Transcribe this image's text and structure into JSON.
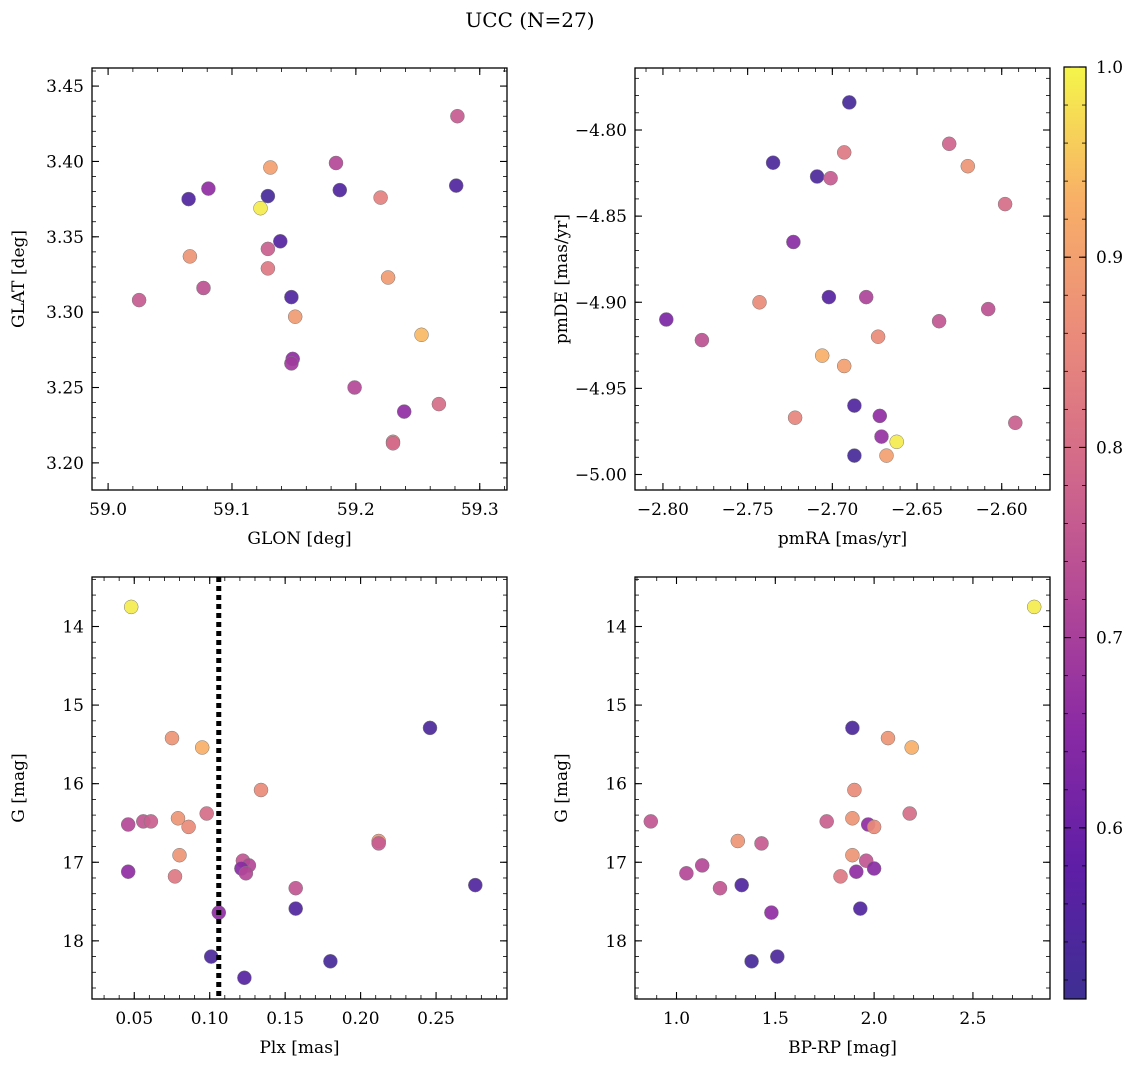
{
  "chart_data": {
    "title": "UCC (N=27)",
    "colormap": "plasma",
    "colorbar": {
      "range": [
        0.51,
        1.0
      ],
      "ticks": [
        "0.6",
        "0.7",
        "0.8",
        "0.9",
        "1.0"
      ],
      "tick_values": [
        0.6,
        0.7,
        0.8,
        0.9,
        1.0
      ]
    },
    "panels": [
      {
        "type": "scatter",
        "xlabel": "GLON [deg]",
        "ylabel": "GLAT [deg]",
        "xlim": [
          58.987,
          59.322
        ],
        "ylim": [
          3.182,
          3.462
        ],
        "x_ticks": [
          59.0,
          59.1,
          59.2,
          59.3
        ],
        "x_tick_labels": [
          "59.0",
          "59.1",
          "59.2",
          "59.3"
        ],
        "y_ticks": [
          3.2,
          3.25,
          3.3,
          3.35,
          3.4,
          3.45
        ],
        "y_tick_labels": [
          "3.20",
          "3.25",
          "3.30",
          "3.35",
          "3.40",
          "3.45"
        ],
        "y_inverted": false,
        "points": [
          {
            "x": 59.282,
            "y": 3.43,
            "c": 0.76
          },
          {
            "x": 59.131,
            "y": 3.396,
            "c": 0.9
          },
          {
            "x": 59.184,
            "y": 3.399,
            "c": 0.72
          },
          {
            "x": 59.081,
            "y": 3.382,
            "c": 0.66
          },
          {
            "x": 59.187,
            "y": 3.381,
            "c": 0.55
          },
          {
            "x": 59.281,
            "y": 3.384,
            "c": 0.55
          },
          {
            "x": 59.129,
            "y": 3.377,
            "c": 0.53
          },
          {
            "x": 59.22,
            "y": 3.376,
            "c": 0.84
          },
          {
            "x": 59.065,
            "y": 3.375,
            "c": 0.55
          },
          {
            "x": 59.123,
            "y": 3.369,
            "c": 0.99
          },
          {
            "x": 59.139,
            "y": 3.347,
            "c": 0.56
          },
          {
            "x": 59.129,
            "y": 3.342,
            "c": 0.77
          },
          {
            "x": 59.066,
            "y": 3.337,
            "c": 0.88
          },
          {
            "x": 59.129,
            "y": 3.329,
            "c": 0.82
          },
          {
            "x": 59.226,
            "y": 3.323,
            "c": 0.89
          },
          {
            "x": 59.077,
            "y": 3.316,
            "c": 0.74
          },
          {
            "x": 59.148,
            "y": 3.31,
            "c": 0.55
          },
          {
            "x": 59.025,
            "y": 3.308,
            "c": 0.76
          },
          {
            "x": 59.151,
            "y": 3.297,
            "c": 0.89
          },
          {
            "x": 59.253,
            "y": 3.285,
            "c": 0.94
          },
          {
            "x": 59.149,
            "y": 3.269,
            "c": 0.66
          },
          {
            "x": 59.148,
            "y": 3.266,
            "c": 0.69
          },
          {
            "x": 59.199,
            "y": 3.25,
            "c": 0.72
          },
          {
            "x": 59.267,
            "y": 3.239,
            "c": 0.8
          },
          {
            "x": 59.239,
            "y": 3.234,
            "c": 0.66
          },
          {
            "x": 59.23,
            "y": 3.214,
            "c": 0.83
          },
          {
            "x": 59.23,
            "y": 3.213,
            "c": 0.79
          }
        ]
      },
      {
        "type": "scatter",
        "xlabel": "pmRA [mas/yr]",
        "ylabel": "pmDE [mas/yr]",
        "xlim": [
          -2.8165,
          -2.5715
        ],
        "ylim": [
          -5.009,
          -4.764
        ],
        "x_ticks": [
          -2.8,
          -2.75,
          -2.7,
          -2.65,
          -2.6
        ],
        "x_tick_labels": [
          "−2.80",
          "−2.75",
          "−2.70",
          "−2.65",
          "−2.60"
        ],
        "y_ticks": [
          -5.0,
          -4.95,
          -4.9,
          -4.85,
          -4.8
        ],
        "y_tick_labels": [
          "−5.00",
          "−4.95",
          "−4.90",
          "−4.85",
          "−4.80"
        ],
        "y_inverted": false,
        "points": [
          {
            "x": -2.69,
            "y": -4.784,
            "c": 0.53
          },
          {
            "x": -2.631,
            "y": -4.808,
            "c": 0.78
          },
          {
            "x": -2.693,
            "y": -4.813,
            "c": 0.82
          },
          {
            "x": -2.62,
            "y": -4.821,
            "c": 0.88
          },
          {
            "x": -2.735,
            "y": -4.819,
            "c": 0.54
          },
          {
            "x": -2.709,
            "y": -4.827,
            "c": 0.54
          },
          {
            "x": -2.701,
            "y": -4.828,
            "c": 0.76
          },
          {
            "x": -2.598,
            "y": -4.843,
            "c": 0.8
          },
          {
            "x": -2.723,
            "y": -4.865,
            "c": 0.65
          },
          {
            "x": -2.743,
            "y": -4.9,
            "c": 0.86
          },
          {
            "x": -2.702,
            "y": -4.897,
            "c": 0.56
          },
          {
            "x": -2.68,
            "y": -4.897,
            "c": 0.71
          },
          {
            "x": -2.608,
            "y": -4.904,
            "c": 0.74
          },
          {
            "x": -2.637,
            "y": -4.911,
            "c": 0.75
          },
          {
            "x": -2.798,
            "y": -4.91,
            "c": 0.63
          },
          {
            "x": -2.777,
            "y": -4.922,
            "c": 0.74
          },
          {
            "x": -2.673,
            "y": -4.92,
            "c": 0.86
          },
          {
            "x": -2.706,
            "y": -4.931,
            "c": 0.93
          },
          {
            "x": -2.693,
            "y": -4.937,
            "c": 0.9
          },
          {
            "x": -2.687,
            "y": -4.96,
            "c": 0.55
          },
          {
            "x": -2.722,
            "y": -4.967,
            "c": 0.85
          },
          {
            "x": -2.672,
            "y": -4.966,
            "c": 0.66
          },
          {
            "x": -2.592,
            "y": -4.97,
            "c": 0.77
          },
          {
            "x": -2.671,
            "y": -4.978,
            "c": 0.67
          },
          {
            "x": -2.662,
            "y": -4.981,
            "c": 0.99
          },
          {
            "x": -2.687,
            "y": -4.989,
            "c": 0.53
          },
          {
            "x": -2.668,
            "y": -4.989,
            "c": 0.9
          }
        ]
      },
      {
        "type": "scatter",
        "xlabel": "Plx [mas]",
        "ylabel": "G [mag]",
        "xlim": [
          0.022,
          0.297
        ],
        "ylim": [
          13.37,
          18.74
        ],
        "x_ticks": [
          0.05,
          0.1,
          0.15,
          0.2,
          0.25
        ],
        "x_tick_labels": [
          "0.05",
          "0.10",
          "0.15",
          "0.20",
          "0.25"
        ],
        "y_ticks": [
          14,
          15,
          16,
          17,
          18
        ],
        "y_tick_labels": [
          "14",
          "15",
          "16",
          "17",
          "18"
        ],
        "y_inverted": true,
        "vline": {
          "x": 0.106,
          "style": "dotted",
          "color": "#000000"
        },
        "points": [
          {
            "x": 0.048,
            "y": 13.75,
            "c": 0.99
          },
          {
            "x": 0.246,
            "y": 15.29,
            "c": 0.54
          },
          {
            "x": 0.075,
            "y": 15.42,
            "c": 0.88
          },
          {
            "x": 0.095,
            "y": 15.54,
            "c": 0.93
          },
          {
            "x": 0.134,
            "y": 16.08,
            "c": 0.86
          },
          {
            "x": 0.098,
            "y": 16.38,
            "c": 0.8
          },
          {
            "x": 0.079,
            "y": 16.44,
            "c": 0.88
          },
          {
            "x": 0.056,
            "y": 16.48,
            "c": 0.75
          },
          {
            "x": 0.061,
            "y": 16.48,
            "c": 0.77
          },
          {
            "x": 0.046,
            "y": 16.52,
            "c": 0.72
          },
          {
            "x": 0.086,
            "y": 16.55,
            "c": 0.86
          },
          {
            "x": 0.212,
            "y": 16.73,
            "c": 0.88
          },
          {
            "x": 0.212,
            "y": 16.76,
            "c": 0.76
          },
          {
            "x": 0.08,
            "y": 16.91,
            "c": 0.88
          },
          {
            "x": 0.122,
            "y": 16.98,
            "c": 0.75
          },
          {
            "x": 0.126,
            "y": 17.04,
            "c": 0.72
          },
          {
            "x": 0.121,
            "y": 17.08,
            "c": 0.65
          },
          {
            "x": 0.046,
            "y": 17.12,
            "c": 0.66
          },
          {
            "x": 0.124,
            "y": 17.14,
            "c": 0.72
          },
          {
            "x": 0.077,
            "y": 17.18,
            "c": 0.82
          },
          {
            "x": 0.276,
            "y": 17.29,
            "c": 0.55
          },
          {
            "x": 0.157,
            "y": 17.33,
            "c": 0.75
          },
          {
            "x": 0.157,
            "y": 17.59,
            "c": 0.55
          },
          {
            "x": 0.106,
            "y": 17.64,
            "c": 0.66
          },
          {
            "x": 0.101,
            "y": 18.2,
            "c": 0.54
          },
          {
            "x": 0.18,
            "y": 18.26,
            "c": 0.53
          },
          {
            "x": 0.123,
            "y": 18.47,
            "c": 0.56
          }
        ]
      },
      {
        "type": "scatter",
        "xlabel": "BP-RP [mag]",
        "ylabel": "G [mag]",
        "xlim": [
          0.79,
          2.89
        ],
        "ylim": [
          13.37,
          18.74
        ],
        "x_ticks": [
          1.0,
          1.5,
          2.0,
          2.5
        ],
        "x_tick_labels": [
          "1.0",
          "1.5",
          "2.0",
          "2.5"
        ],
        "y_ticks": [
          14,
          15,
          16,
          17,
          18
        ],
        "y_tick_labels": [
          "14",
          "15",
          "16",
          "17",
          "18"
        ],
        "y_inverted": true,
        "points": [
          {
            "x": 2.81,
            "y": 13.75,
            "c": 0.99
          },
          {
            "x": 1.89,
            "y": 15.29,
            "c": 0.54
          },
          {
            "x": 2.07,
            "y": 15.42,
            "c": 0.88
          },
          {
            "x": 2.19,
            "y": 15.54,
            "c": 0.93
          },
          {
            "x": 1.9,
            "y": 16.08,
            "c": 0.86
          },
          {
            "x": 2.18,
            "y": 16.38,
            "c": 0.8
          },
          {
            "x": 1.89,
            "y": 16.44,
            "c": 0.88
          },
          {
            "x": 0.87,
            "y": 16.48,
            "c": 0.75
          },
          {
            "x": 1.76,
            "y": 16.48,
            "c": 0.77
          },
          {
            "x": 1.97,
            "y": 16.52,
            "c": 0.66
          },
          {
            "x": 2.0,
            "y": 16.55,
            "c": 0.86
          },
          {
            "x": 1.31,
            "y": 16.73,
            "c": 0.88
          },
          {
            "x": 1.43,
            "y": 16.76,
            "c": 0.76
          },
          {
            "x": 1.89,
            "y": 16.91,
            "c": 0.88
          },
          {
            "x": 1.96,
            "y": 16.98,
            "c": 0.75
          },
          {
            "x": 1.13,
            "y": 17.04,
            "c": 0.72
          },
          {
            "x": 2.0,
            "y": 17.08,
            "c": 0.65
          },
          {
            "x": 1.91,
            "y": 17.12,
            "c": 0.66
          },
          {
            "x": 1.05,
            "y": 17.14,
            "c": 0.72
          },
          {
            "x": 1.83,
            "y": 17.18,
            "c": 0.82
          },
          {
            "x": 1.33,
            "y": 17.29,
            "c": 0.55
          },
          {
            "x": 1.22,
            "y": 17.33,
            "c": 0.75
          },
          {
            "x": 1.93,
            "y": 17.59,
            "c": 0.55
          },
          {
            "x": 1.48,
            "y": 17.64,
            "c": 0.66
          },
          {
            "x": 1.51,
            "y": 18.2,
            "c": 0.54
          },
          {
            "x": 1.38,
            "y": 18.26,
            "c": 0.53
          }
        ]
      }
    ]
  }
}
